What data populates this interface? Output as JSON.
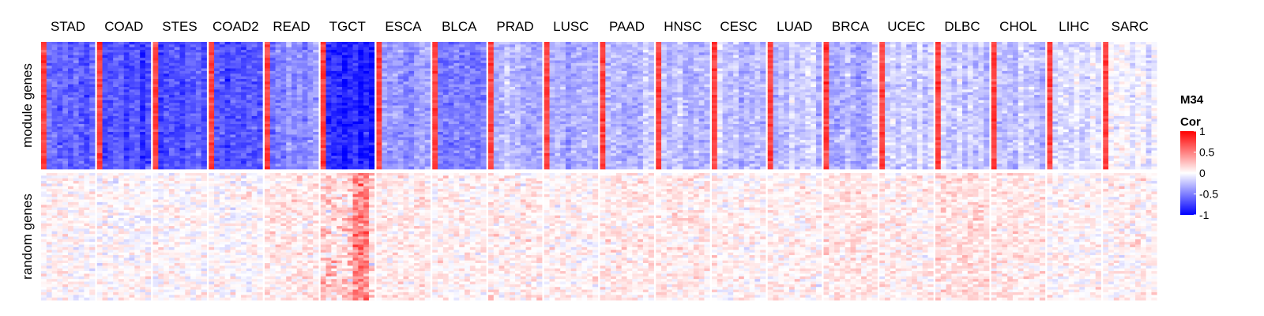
{
  "chart_data": {
    "type": "heatmap",
    "columns": [
      "STAD",
      "COAD",
      "STES",
      "COAD2",
      "READ",
      "TGCT",
      "ESCA",
      "BLCA",
      "PRAD",
      "LUSC",
      "PAAD",
      "HNSC",
      "CESC",
      "LUAD",
      "BRCA",
      "UCEC",
      "DLBC",
      "CHOL",
      "LIHC",
      "SARC"
    ],
    "rows": [
      "module genes",
      "random genes"
    ],
    "module_mean_cor": [
      -0.62,
      -0.7,
      -0.68,
      -0.66,
      -0.45,
      -0.85,
      -0.38,
      -0.5,
      -0.3,
      -0.32,
      -0.3,
      -0.28,
      -0.25,
      -0.22,
      -0.3,
      -0.2,
      -0.2,
      -0.2,
      -0.15,
      -0.05
    ],
    "random_mean_cor": [
      0.02,
      0.01,
      0.02,
      0.01,
      0.08,
      0.15,
      0.08,
      0.05,
      0.06,
      0.05,
      0.08,
      0.08,
      0.04,
      0.05,
      0.1,
      0.06,
      0.12,
      0.1,
      0.03,
      0.04
    ],
    "legend": {
      "title_line1": "M34",
      "title_line2": "Cor",
      "ticks": [
        {
          "value": 1,
          "label": "1"
        },
        {
          "value": 0.5,
          "label": "0.5"
        },
        {
          "value": 0,
          "label": "0"
        },
        {
          "value": -0.5,
          "label": "-0.5"
        },
        {
          "value": -1,
          "label": "-1"
        }
      ],
      "range": [
        -1,
        1
      ]
    },
    "colors": {
      "high": "#ff0000",
      "mid": "#ffffff",
      "low": "#0000ff"
    }
  }
}
